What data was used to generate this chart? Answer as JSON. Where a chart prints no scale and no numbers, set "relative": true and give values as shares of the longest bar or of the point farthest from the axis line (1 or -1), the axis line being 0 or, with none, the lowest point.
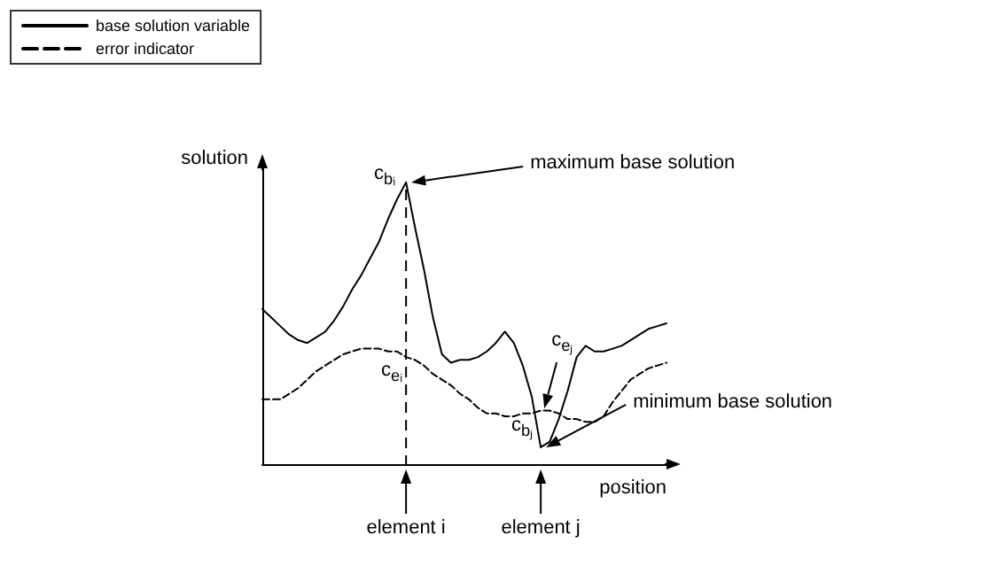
{
  "chart_data": {
    "type": "line",
    "relative": true,
    "xlabel": "position",
    "ylabel": "solution",
    "categories": [
      null,
      null,
      null,
      null,
      null,
      null,
      null,
      null,
      null,
      null,
      null,
      null,
      null,
      null,
      null,
      null,
      null,
      null,
      null,
      null,
      null,
      null,
      null,
      null,
      null,
      null,
      null,
      null,
      null,
      null,
      null,
      null,
      null,
      null,
      null,
      null,
      null,
      null,
      null,
      null,
      null,
      null,
      null,
      null,
      null,
      null
    ],
    "series": [
      {
        "name": "base solution variable",
        "color": "#000000",
        "line_style": "solid",
        "values": [
          0.55,
          0.52,
          0.49,
          0.46,
          0.44,
          0.43,
          0.45,
          0.47,
          0.51,
          0.56,
          0.62,
          0.67,
          0.73,
          0.79,
          0.87,
          0.94,
          1,
          0.84,
          0.69,
          0.52,
          0.39,
          0.36,
          0.37,
          0.37,
          0.38,
          0.4,
          0.43,
          0.47,
          0.43,
          0.35,
          0.24,
          0.06,
          0.08,
          0.16,
          0.26,
          0.38,
          0.42,
          0.4,
          0.4,
          0.41,
          0.42,
          0.44,
          0.46,
          0.48,
          0.49,
          0.5
        ]
      },
      {
        "name": "error indicator",
        "color": "#000000",
        "line_style": "dashed",
        "values": [
          0.23,
          0.23,
          0.23,
          0.25,
          0.27,
          0.3,
          0.33,
          0.35,
          0.37,
          0.39,
          0.4,
          0.41,
          0.41,
          0.41,
          0.4,
          0.4,
          0.38,
          0.37,
          0.35,
          0.32,
          0.3,
          0.28,
          0.25,
          0.23,
          0.2,
          0.18,
          0.18,
          0.17,
          0.17,
          0.18,
          0.18,
          0.19,
          0.19,
          0.18,
          0.16,
          0.16,
          0.15,
          0.15,
          0.17,
          0.22,
          0.26,
          0.3,
          0.32,
          0.34,
          0.35,
          0.36
        ]
      }
    ],
    "annotations": [
      "maximum base solution",
      "minimum base solution",
      "element i",
      "element j",
      "c$_{bᵢ}$",
      "c$_{eᵢ}$",
      "c$_{eⱼ}$",
      "c$_{bⱼ}$"
    ],
    "legend": "top left",
    "marker": "none",
    "grid": false
  }
}
